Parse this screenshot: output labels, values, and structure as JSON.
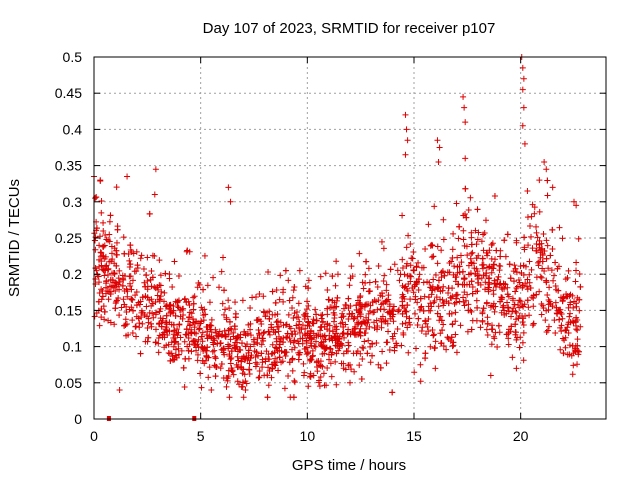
{
  "chart_data": {
    "type": "scatter",
    "title": "Day 107 of 2023, SRMTID for receiver p107",
    "xlabel": "GPS time / hours",
    "ylabel": "SRMTID / TECUs",
    "xlim": [
      0,
      24
    ],
    "ylim": [
      0,
      0.5
    ],
    "x_ticks": [
      0,
      5,
      10,
      15,
      20
    ],
    "x_tick_labels": [
      "0",
      "5",
      "10",
      "15",
      "20"
    ],
    "y_ticks": [
      0,
      0.05,
      0.1,
      0.15,
      0.2,
      0.25,
      0.3,
      0.35,
      0.4,
      0.45,
      0.5
    ],
    "y_tick_labels": [
      "0",
      "0.05",
      "0.1",
      "0.15",
      "0.2",
      "0.25",
      "0.3",
      "0.35",
      "0.4",
      "0.45",
      "0.5"
    ],
    "grid": true,
    "marker": "plus",
    "color": "#dd0000",
    "zero_markers": [
      0.7,
      4.7
    ],
    "envelope_hours": [
      0,
      0.5,
      1,
      1.5,
      2,
      2.5,
      3,
      3.5,
      4,
      4.5,
      5,
      5.5,
      6,
      6.5,
      7,
      7.5,
      8,
      8.5,
      9,
      9.5,
      10,
      10.5,
      11,
      11.5,
      12,
      12.5,
      13,
      13.5,
      14,
      14.5,
      15,
      15.5,
      16,
      16.5,
      17,
      17.5,
      18,
      18.5,
      19,
      19.5,
      20,
      20.5,
      21,
      21.5,
      22,
      22.5
    ],
    "envelope_center": [
      0.22,
      0.2,
      0.2,
      0.19,
      0.17,
      0.16,
      0.15,
      0.14,
      0.13,
      0.12,
      0.12,
      0.11,
      0.12,
      0.1,
      0.09,
      0.1,
      0.11,
      0.12,
      0.11,
      0.12,
      0.11,
      0.1,
      0.11,
      0.12,
      0.13,
      0.13,
      0.14,
      0.15,
      0.15,
      0.17,
      0.19,
      0.15,
      0.16,
      0.17,
      0.19,
      0.21,
      0.2,
      0.18,
      0.17,
      0.16,
      0.17,
      0.2,
      0.21,
      0.18,
      0.14,
      0.13
    ],
    "envelope_spread": [
      0.05,
      0.05,
      0.05,
      0.05,
      0.05,
      0.05,
      0.04,
      0.04,
      0.04,
      0.04,
      0.04,
      0.04,
      0.05,
      0.04,
      0.04,
      0.04,
      0.04,
      0.04,
      0.04,
      0.04,
      0.04,
      0.04,
      0.04,
      0.04,
      0.04,
      0.04,
      0.04,
      0.04,
      0.05,
      0.05,
      0.06,
      0.05,
      0.06,
      0.06,
      0.06,
      0.06,
      0.05,
      0.05,
      0.05,
      0.05,
      0.05,
      0.06,
      0.06,
      0.05,
      0.05,
      0.05
    ],
    "spikes": [
      {
        "x": 0.0,
        "y": 0.335
      },
      {
        "x": 0.05,
        "y": 0.305
      },
      {
        "x": 1.55,
        "y": 0.335
      },
      {
        "x": 2.9,
        "y": 0.345
      },
      {
        "x": 2.85,
        "y": 0.31
      },
      {
        "x": 6.3,
        "y": 0.32
      },
      {
        "x": 6.4,
        "y": 0.3
      },
      {
        "x": 9.2,
        "y": 0.03
      },
      {
        "x": 14.6,
        "y": 0.42
      },
      {
        "x": 14.65,
        "y": 0.4
      },
      {
        "x": 14.7,
        "y": 0.385
      },
      {
        "x": 14.6,
        "y": 0.365
      },
      {
        "x": 16.1,
        "y": 0.385
      },
      {
        "x": 16.2,
        "y": 0.375
      },
      {
        "x": 16.15,
        "y": 0.355
      },
      {
        "x": 17.3,
        "y": 0.445
      },
      {
        "x": 17.35,
        "y": 0.43
      },
      {
        "x": 17.4,
        "y": 0.41
      },
      {
        "x": 17.4,
        "y": 0.36
      },
      {
        "x": 20.05,
        "y": 0.5
      },
      {
        "x": 20.1,
        "y": 0.485
      },
      {
        "x": 20.15,
        "y": 0.47
      },
      {
        "x": 20.1,
        "y": 0.455
      },
      {
        "x": 20.15,
        "y": 0.43
      },
      {
        "x": 20.1,
        "y": 0.405
      },
      {
        "x": 20.2,
        "y": 0.38
      },
      {
        "x": 21.1,
        "y": 0.355
      },
      {
        "x": 21.2,
        "y": 0.345
      },
      {
        "x": 21.5,
        "y": 0.32
      },
      {
        "x": 22.5,
        "y": 0.3
      },
      {
        "x": 22.6,
        "y": 0.295
      },
      {
        "x": 19.8,
        "y": 0.07
      },
      {
        "x": 18.6,
        "y": 0.06
      },
      {
        "x": 7.1,
        "y": 0.04
      },
      {
        "x": 5.5,
        "y": 0.04
      },
      {
        "x": 1.2,
        "y": 0.04
      },
      {
        "x": 10.3,
        "y": 0.06
      },
      {
        "x": 12.0,
        "y": 0.05
      },
      {
        "x": 16.0,
        "y": 0.07
      },
      {
        "x": 15.3,
        "y": 0.075
      }
    ]
  }
}
